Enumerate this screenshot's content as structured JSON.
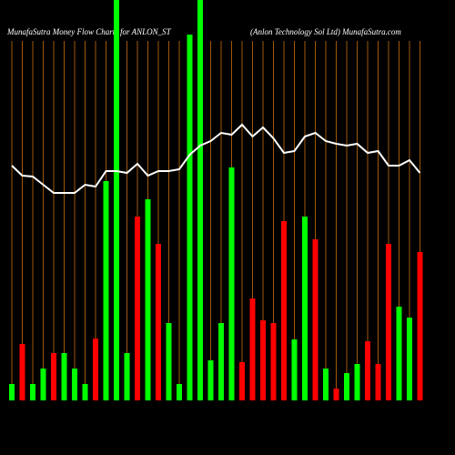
{
  "chart_data": {
    "type": "bar",
    "title": "MunafaSutra  Money Flow  Charts for ANLON_ST",
    "subtitle": "(Anlon  Technology Sol Ltd) MunafaSutra.com",
    "ylim": [
      0,
      440
    ],
    "y2lim": [
      0,
      440
    ],
    "grid": true,
    "grid_color": "#a0580c",
    "series": [
      {
        "colors": [
          "#00ff00",
          "#ff0000",
          "#00ff00",
          "#00ff00",
          "#ff0000",
          "#00ff00",
          "#00ff00",
          "#00ff00",
          "#ff0000",
          "#00ff00",
          "#00ff00",
          "#00ff00",
          "#ff0000",
          "#00ff00",
          "#ff0000",
          "#00ff00",
          "#00ff00",
          "#00ff00",
          "#00ff00",
          "#00ff00",
          "#00ff00",
          "#00ff00",
          "#ff0000",
          "#ff0000",
          "#ff0000",
          "#ff0000",
          "#ff0000",
          "#00ff00",
          "#00ff00",
          "#ff0000",
          "#00ff00",
          "#ff0000",
          "#00ff00",
          "#00ff00",
          "#ff0000",
          "#ff0000",
          "#ff0000",
          "#00ff00",
          "#00ff00",
          "#ff0000"
        ],
        "values": [
          18,
          62,
          18,
          35,
          52,
          52,
          35,
          18,
          68,
          241,
          440,
          52,
          202,
          221,
          172,
          85,
          18,
          402,
          440,
          44,
          85,
          256,
          42,
          112,
          88,
          85,
          197,
          67,
          202,
          177,
          35,
          13,
          30,
          40,
          65,
          40,
          172,
          103,
          91,
          163
        ]
      },
      {
        "axis": "y2",
        "color": "#ffffff",
        "values": [
          258,
          247,
          246,
          237,
          228,
          228,
          228,
          237,
          235,
          252,
          252,
          250,
          260,
          247,
          252,
          252,
          254,
          270,
          280,
          285,
          294,
          292,
          303,
          290,
          300,
          288,
          272,
          274,
          290,
          294,
          285,
          282,
          280,
          282,
          272,
          274,
          258,
          258,
          264,
          250
        ]
      }
    ]
  }
}
